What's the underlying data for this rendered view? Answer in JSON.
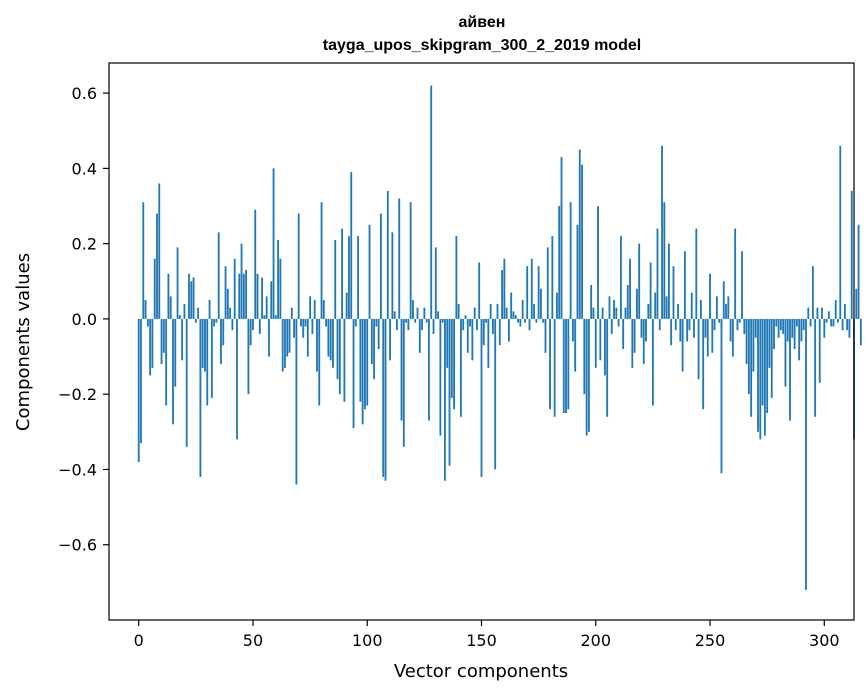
{
  "chart_data": {
    "type": "bar",
    "title_line1": "айвен",
    "title_line2": "tayga_upos_skipgram_300_2_2019 model",
    "xlabel": "Vector components",
    "ylabel": "Components values",
    "xlim": [
      -13,
      313
    ],
    "ylim": [
      -0.8,
      0.68
    ],
    "xticks": [
      0,
      50,
      100,
      150,
      200,
      250,
      300
    ],
    "xtick_labels": [
      "0",
      "50",
      "100",
      "150",
      "200",
      "250",
      "300"
    ],
    "yticks": [
      -0.6,
      -0.4,
      -0.2,
      0.0,
      0.2,
      0.4,
      0.6
    ],
    "ytick_labels": [
      "−0.6",
      "−0.4",
      "−0.2",
      "0.0",
      "0.2",
      "0.4",
      "0.6"
    ],
    "bar_color": "#1f77b4",
    "grid": false,
    "values": [
      -0.38,
      -0.33,
      0.31,
      0.05,
      -0.02,
      -0.15,
      -0.13,
      0.16,
      0.28,
      0.36,
      -0.12,
      -0.09,
      -0.23,
      0.12,
      0.06,
      -0.28,
      -0.18,
      0.19,
      0.01,
      -0.11,
      0.04,
      -0.34,
      0.12,
      0.1,
      0.11,
      -0.01,
      0.03,
      -0.42,
      -0.13,
      -0.14,
      -0.23,
      0.05,
      -0.21,
      -0.02,
      -0.01,
      0.23,
      -0.12,
      -0.07,
      0.14,
      0.08,
      0.03,
      -0.03,
      0.16,
      -0.32,
      0.12,
      0.2,
      0.12,
      0.13,
      -0.2,
      -0.07,
      -0.03,
      0.29,
      0.12,
      -0.04,
      0.11,
      0.01,
      0.06,
      -0.1,
      0.1,
      0.4,
      0.01,
      0.21,
      0.16,
      -0.14,
      -0.13,
      -0.1,
      -0.09,
      0.03,
      -0.05,
      -0.44,
      0.28,
      -0.02,
      -0.05,
      -0.02,
      -0.1,
      0.06,
      -0.04,
      0.05,
      -0.14,
      -0.23,
      0.31,
      0.05,
      -0.02,
      -0.1,
      -0.11,
      -0.13,
      0.21,
      -0.16,
      -0.2,
      0.24,
      -0.22,
      0.07,
      0.22,
      0.39,
      -0.29,
      -0.02,
      0.22,
      -0.22,
      -0.28,
      -0.24,
      -0.23,
      0.25,
      -0.12,
      -0.16,
      -0.02,
      -0.08,
      0.28,
      -0.42,
      -0.43,
      0.34,
      -0.11,
      0.23,
      0.02,
      -0.03,
      0.32,
      -0.27,
      -0.34,
      -0.01,
      -0.03,
      0.31,
      0.05,
      -0.01,
      0.03,
      -0.09,
      -0.03,
      0.03,
      -0.01,
      -0.27,
      0.62,
      -0.04,
      0.19,
      0.02,
      -0.31,
      -0.01,
      -0.43,
      -0.13,
      -0.39,
      -0.21,
      -0.24,
      0.22,
      0.04,
      -0.26,
      -0.03,
      0.01,
      -0.09,
      -0.02,
      -0.11,
      0.03,
      -0.03,
      0.15,
      -0.42,
      -0.07,
      -0.01,
      -0.13,
      0.04,
      -0.04,
      -0.4,
      0.04,
      -0.07,
      0.13,
      0.16,
      0.03,
      -0.06,
      0.07,
      0.02,
      0.01,
      -0.01,
      -0.02,
      0.05,
      -0.01,
      0.14,
      -0.03,
      0.16,
      0.04,
      -0.01,
      0.14,
      0.08,
      -0.01,
      -0.09,
      0.19,
      -0.24,
      0.22,
      -0.26,
      0.07,
      0.3,
      0.43,
      -0.25,
      -0.25,
      -0.24,
      0.31,
      -0.06,
      -0.14,
      0.25,
      0.45,
      0.41,
      -0.2,
      -0.31,
      -0.3,
      0.09,
      0.03,
      -0.13,
      0.3,
      -0.11,
      0.03,
      -0.15,
      -0.26,
      0.06,
      -0.04,
      0.05,
      0.03,
      -0.02,
      0.22,
      -0.08,
      0.03,
      0.09,
      0.16,
      -0.13,
      -0.09,
      0.08,
      0.2,
      -0.05,
      -0.12,
      -0.06,
      0.04,
      0.15,
      -0.23,
      0.07,
      0.24,
      -0.03,
      0.46,
      0.31,
      0.06,
      0.2,
      -0.07,
      0.14,
      -0.03,
      0.04,
      -0.06,
      -0.14,
      0.18,
      -0.06,
      -0.03,
      0.07,
      -0.05,
      0.24,
      -0.16,
      0.05,
      -0.24,
      -0.05,
      -0.1,
      0.12,
      -0.09,
      -0.03,
      0.06,
      -0.01,
      -0.41,
      0.1,
      0.04,
      0.06,
      -0.06,
      -0.1,
      0.24,
      -0.03,
      -0.01,
      0.18,
      -0.04,
      -0.12,
      -0.2,
      -0.26,
      -0.14,
      -0.05,
      -0.3,
      -0.32,
      -0.23,
      -0.31,
      -0.25,
      -0.13,
      -0.21,
      -0.08,
      -0.02,
      -0.05,
      -0.03,
      -0.04,
      -0.18,
      -0.06,
      -0.27,
      -0.05,
      -0.08,
      -0.02,
      -0.11,
      -0.06,
      -0.03,
      -0.72,
      0.03,
      -0.02,
      0.14,
      -0.26,
      0.03,
      -0.17,
      0.03,
      -0.05,
      -0.01,
      0.02,
      -0.02,
      -0.02,
      0.05,
      -0.01,
      0.46,
      -0.03,
      0.04,
      -0.03,
      -0.05,
      0.34,
      -0.32,
      0.08,
      0.25,
      -0.07
    ]
  }
}
